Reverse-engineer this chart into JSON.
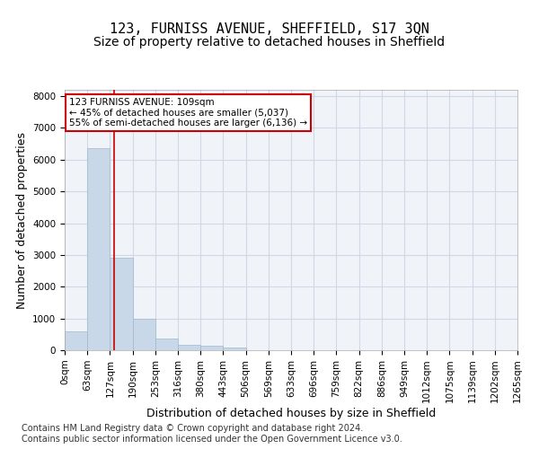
{
  "title_line1": "123, FURNISS AVENUE, SHEFFIELD, S17 3QN",
  "title_line2": "Size of property relative to detached houses in Sheffield",
  "xlabel": "Distribution of detached houses by size in Sheffield",
  "ylabel": "Number of detached properties",
  "bar_color": "#c8d8e8",
  "bar_edgecolor": "#a0b8cc",
  "grid_color": "#d0d8e8",
  "background_color": "#f0f4f8",
  "vline_color": "#cc0000",
  "vline_x": 1.7,
  "annotation_text": "123 FURNISS AVENUE: 109sqm\n← 45% of detached houses are smaller (5,037)\n55% of semi-detached houses are larger (6,136) →",
  "annotation_box_color": "#cc0000",
  "bin_labels": [
    "0sqm",
    "63sqm",
    "127sqm",
    "190sqm",
    "253sqm",
    "316sqm",
    "380sqm",
    "443sqm",
    "506sqm",
    "569sqm",
    "633sqm",
    "696sqm",
    "759sqm",
    "822sqm",
    "886sqm",
    "949sqm",
    "1012sqm",
    "1075sqm",
    "1139sqm",
    "1202sqm",
    "1265sqm"
  ],
  "bar_heights": [
    600,
    6350,
    2920,
    1000,
    380,
    170,
    130,
    90,
    0,
    0,
    0,
    0,
    0,
    0,
    0,
    0,
    0,
    0,
    0,
    0
  ],
  "ylim": [
    0,
    8200
  ],
  "yticks": [
    0,
    1000,
    2000,
    3000,
    4000,
    5000,
    6000,
    7000,
    8000
  ],
  "footer_text": "Contains HM Land Registry data © Crown copyright and database right 2024.\nContains public sector information licensed under the Open Government Licence v3.0.",
  "title_fontsize": 11,
  "subtitle_fontsize": 10,
  "axis_label_fontsize": 9,
  "tick_fontsize": 7.5,
  "footer_fontsize": 7
}
